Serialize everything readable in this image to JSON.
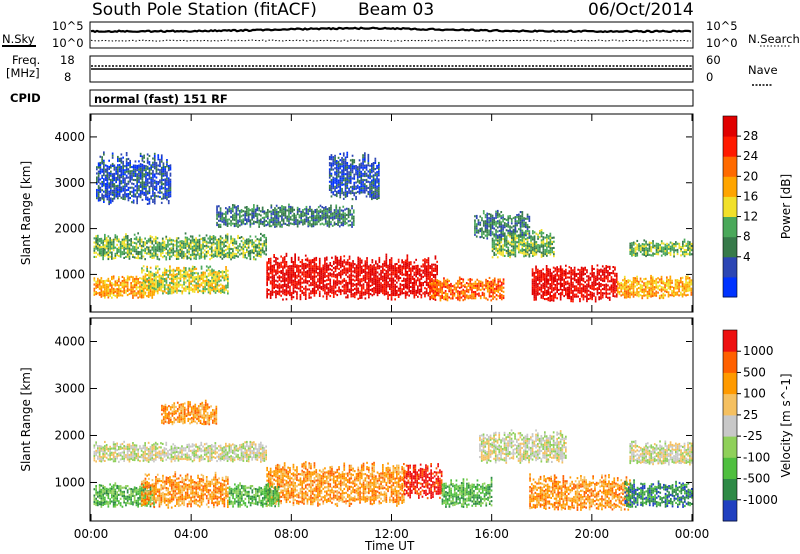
{
  "header": {
    "title": "South Pole Station (fitACF)",
    "beam": "Beam 03",
    "date": "06/Oct/2014"
  },
  "strip_labels": {
    "nsky": "N.Sky",
    "nsearch": "N.Search",
    "freq_line1": "Freq.",
    "freq_line2": "[MHz]",
    "nave": "Nave",
    "cpid": "CPID",
    "cpid_text": "normal (fast) 151 RF"
  },
  "strip_ticks": {
    "noise_left": [
      "10^5",
      "10^0"
    ],
    "noise_right": [
      "10^5",
      "10^0"
    ],
    "freq_left": [
      "18",
      "8"
    ],
    "nave_right": [
      "60",
      "0"
    ]
  },
  "chart_data": [
    {
      "type": "heatmap",
      "name": "power-panel",
      "xlabel": "",
      "ylabel": "Slant Range [km]",
      "x_ticks": [
        "00:00",
        "04:00",
        "08:00",
        "12:00",
        "16:00",
        "20:00",
        "00:00"
      ],
      "x_range_hours": [
        0,
        24
      ],
      "y_ticks": [
        1000,
        2000,
        3000,
        4000
      ],
      "ylim": [
        180,
        4500
      ],
      "colorbar": {
        "label": "Power [dB]",
        "ticks": [
          "28",
          "24",
          "20",
          "16",
          "12",
          "8",
          "4"
        ],
        "colors": [
          "#0033ff",
          "#2c46b4",
          "#377a4a",
          "#4aa85a",
          "#f1e02a",
          "#ffa500",
          "#ff6a00",
          "#ff1a00",
          "#e00000"
        ]
      },
      "regions": [
        {
          "t0": 0.1,
          "t1": 7.0,
          "r0": 1350,
          "r1": 1800,
          "level": 3
        },
        {
          "t0": 0.1,
          "t1": 2.5,
          "r0": 500,
          "r1": 900,
          "level": 5
        },
        {
          "t0": 2.0,
          "t1": 5.5,
          "r0": 600,
          "r1": 1100,
          "level": 4
        },
        {
          "t0": 5.0,
          "t1": 10.5,
          "r0": 2050,
          "r1": 2450,
          "level": 2
        },
        {
          "t0": 7.0,
          "t1": 13.8,
          "r0": 500,
          "r1": 1300,
          "level": 8
        },
        {
          "t0": 13.5,
          "t1": 16.5,
          "r0": 450,
          "r1": 850,
          "level": 6
        },
        {
          "t0": 16.0,
          "t1": 18.5,
          "r0": 1400,
          "r1": 1900,
          "level": 3
        },
        {
          "t0": 17.6,
          "t1": 21.0,
          "r0": 450,
          "r1": 1100,
          "level": 8
        },
        {
          "t0": 21.0,
          "t1": 24.0,
          "r0": 500,
          "r1": 900,
          "level": 5
        },
        {
          "t0": 21.5,
          "t1": 24.0,
          "r0": 1400,
          "r1": 1700,
          "level": 3
        },
        {
          "t0": 0.2,
          "t1": 3.2,
          "r0": 2600,
          "r1": 3500,
          "level": 1
        },
        {
          "t0": 9.5,
          "t1": 11.5,
          "r0": 2700,
          "r1": 3500,
          "level": 1
        },
        {
          "t0": 15.3,
          "t1": 17.5,
          "r0": 1800,
          "r1": 2300,
          "level": 2
        }
      ]
    },
    {
      "type": "heatmap",
      "name": "velocity-panel",
      "xlabel": "Time UT",
      "ylabel": "Slant Range [km]",
      "x_ticks": [
        "00:00",
        "04:00",
        "08:00",
        "12:00",
        "16:00",
        "20:00",
        "00:00"
      ],
      "x_range_hours": [
        0,
        24
      ],
      "y_ticks": [
        1000,
        2000,
        3000,
        4000
      ],
      "ylim": [
        180,
        4500
      ],
      "colorbar": {
        "label": "Velocity [m s^-1]",
        "ticks": [
          "1000",
          "500",
          "100",
          "25",
          "-25",
          "-100",
          "-500",
          "-1000"
        ],
        "colors": [
          "#2040c0",
          "#2e8a46",
          "#4fbf3f",
          "#8fd05a",
          "#c8c8c8",
          "#f5c060",
          "#ff9a00",
          "#ff6000",
          "#ee1010"
        ]
      },
      "regions": [
        {
          "t0": 0.1,
          "t1": 7.0,
          "r0": 1450,
          "r1": 1800,
          "level": 4
        },
        {
          "t0": 0.1,
          "t1": 2.5,
          "r0": 500,
          "r1": 900,
          "level": 2
        },
        {
          "t0": 2.0,
          "t1": 5.5,
          "r0": 500,
          "r1": 1100,
          "level": 6
        },
        {
          "t0": 2.8,
          "t1": 5.0,
          "r0": 2250,
          "r1": 2650,
          "level": 6
        },
        {
          "t0": 7.0,
          "t1": 12.5,
          "r0": 550,
          "r1": 1300,
          "level": 6
        },
        {
          "t0": 12.5,
          "t1": 14.0,
          "r0": 700,
          "r1": 1300,
          "level": 8
        },
        {
          "t0": 14.0,
          "t1": 16.0,
          "r0": 500,
          "r1": 1000,
          "level": 2
        },
        {
          "t0": 15.5,
          "t1": 19.0,
          "r0": 1450,
          "r1": 2000,
          "level": 4
        },
        {
          "t0": 17.5,
          "t1": 21.5,
          "r0": 450,
          "r1": 1050,
          "level": 6
        },
        {
          "t0": 21.3,
          "t1": 24.0,
          "r0": 500,
          "r1": 950,
          "level": 1
        },
        {
          "t0": 21.5,
          "t1": 24.0,
          "r0": 1400,
          "r1": 1800,
          "level": 4
        },
        {
          "t0": 5.5,
          "t1": 7.5,
          "r0": 500,
          "r1": 900,
          "level": 2
        }
      ]
    }
  ]
}
